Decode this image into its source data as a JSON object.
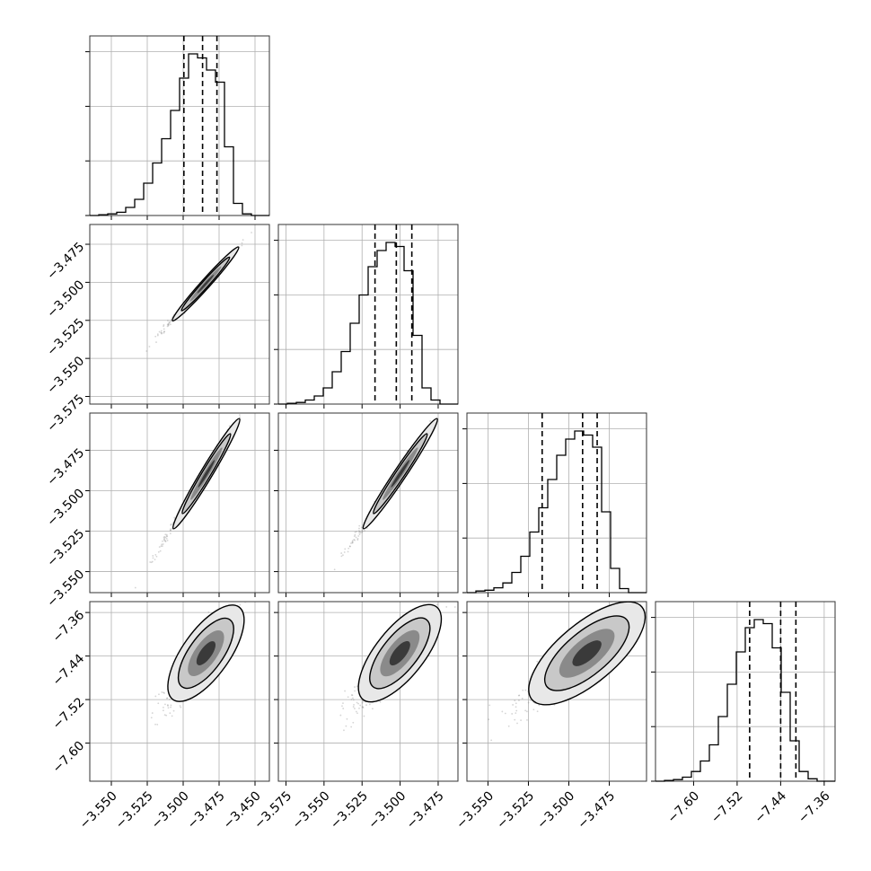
{
  "chart_data": {
    "type": "corner",
    "description_visible": "4x4 corner plot with 1D histograms on the diagonal and 2D density contours below",
    "grid": true,
    "dimensions": [
      {
        "range": [
          -3.565,
          -3.44
        ],
        "xtick_values": [
          -3.55,
          -3.525,
          -3.5,
          -3.475,
          -3.45
        ],
        "xtick_labels": [
          "−3.550",
          "−3.525",
          "−3.500",
          "−3.475",
          "−3.450"
        ],
        "ytick_values": [],
        "ytick_labels": [],
        "quantiles": [
          -3.4995,
          -3.4865,
          -3.4765
        ],
        "hist_counts": [
          0,
          1,
          2,
          4,
          10,
          20,
          40,
          65,
          95,
          130,
          170,
          200,
          195,
          180,
          165,
          85,
          15,
          2,
          0,
          0
        ]
      },
      {
        "range": [
          -3.58,
          -3.462
        ],
        "xtick_values": [
          -3.575,
          -3.55,
          -3.525,
          -3.5,
          -3.475
        ],
        "xtick_labels": [
          "−3.575",
          "−3.550",
          "−3.525",
          "−3.500",
          "−3.475"
        ],
        "ytick_values": [
          -3.475,
          -3.5,
          -3.525,
          -3.55,
          -3.575
        ],
        "ytick_labels": [
          "−3.475",
          "−3.500",
          "−3.525",
          "−3.550",
          "−3.575"
        ],
        "quantiles": [
          -3.5165,
          -3.5025,
          -3.4923
        ],
        "hist_counts": [
          0,
          1,
          2,
          5,
          10,
          20,
          40,
          65,
          100,
          135,
          170,
          190,
          200,
          195,
          165,
          85,
          20,
          5,
          0,
          0
        ]
      },
      {
        "range": [
          -3.563,
          -3.452
        ],
        "xtick_values": [
          -3.55,
          -3.525,
          -3.5,
          -3.475
        ],
        "xtick_labels": [
          "−3.550",
          "−3.525",
          "−3.500",
          "−3.475"
        ],
        "ytick_values": [
          -3.475,
          -3.5,
          -3.525,
          -3.55
        ],
        "ytick_labels": [
          "−3.475",
          "−3.500",
          "−3.525",
          "−3.550"
        ],
        "quantiles": [
          -3.5165,
          -3.4915,
          -3.4825
        ],
        "hist_counts": [
          0,
          2,
          3,
          6,
          12,
          25,
          45,
          75,
          105,
          140,
          170,
          190,
          200,
          195,
          180,
          100,
          30,
          5,
          0,
          0
        ]
      },
      {
        "range": [
          -7.67,
          -7.34
        ],
        "xtick_values": [
          -7.6,
          -7.52,
          -7.44,
          -7.36
        ],
        "xtick_labels": [
          "−7.60",
          "−7.52",
          "−7.44",
          "−7.36"
        ],
        "ytick_values": [
          -7.36,
          -7.44,
          -7.52,
          -7.6
        ],
        "ytick_labels": [
          "−7.36",
          "−7.44",
          "−7.52",
          "−7.60"
        ],
        "quantiles": [
          -7.497,
          -7.44,
          -7.412
        ],
        "hist_counts": [
          0,
          1,
          2,
          5,
          12,
          25,
          45,
          80,
          120,
          160,
          190,
          200,
          195,
          165,
          110,
          50,
          12,
          3,
          0,
          0
        ]
      }
    ],
    "colors": {
      "hist": "#000000",
      "quantile": "#000000",
      "scatter": "#888888",
      "contour": "#000000",
      "grid": "#b0b0b0"
    }
  }
}
